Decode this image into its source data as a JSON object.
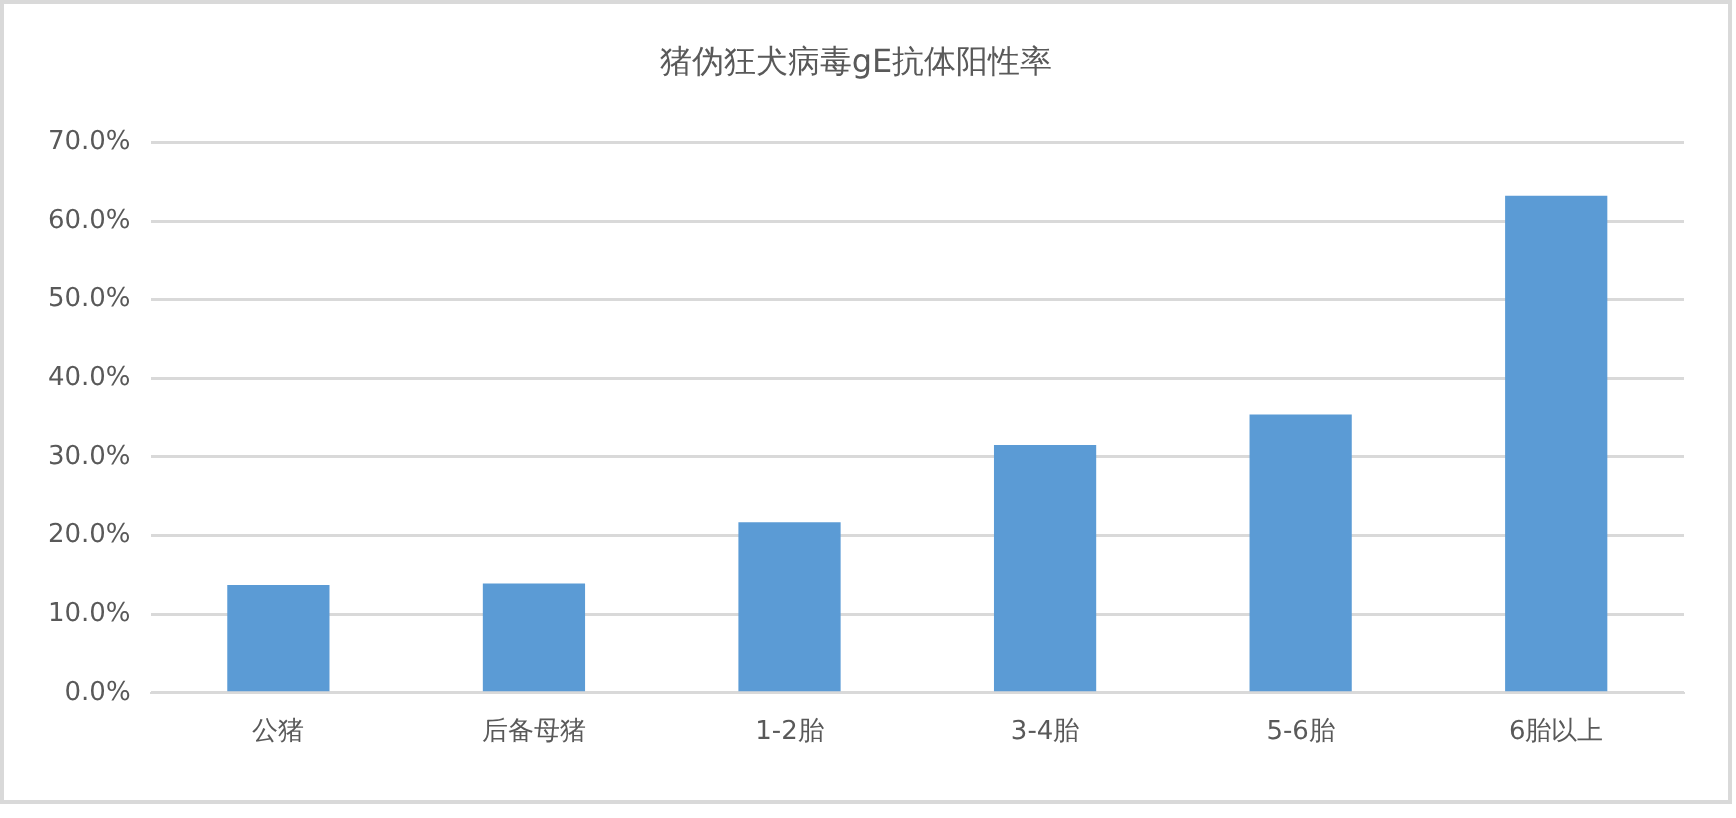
{
  "chart_data": {
    "type": "bar",
    "title": "猪伪狂犬病毒gE抗体阳性率",
    "categories": [
      "公猪",
      "后备母猪",
      "1-2胎",
      "3-4胎",
      "5-6胎",
      "6胎以上"
    ],
    "values": [
      13.7,
      13.9,
      21.7,
      31.5,
      35.4,
      63.2
    ],
    "color": "#5b9bd5",
    "ylim": [
      0,
      70
    ],
    "yticks": [
      {
        "value": 0,
        "label": "0.0%"
      },
      {
        "value": 10,
        "label": "10.0%"
      },
      {
        "value": 20,
        "label": "20.0%"
      },
      {
        "value": 30,
        "label": "30.0%"
      },
      {
        "value": 40,
        "label": "40.0%"
      },
      {
        "value": 50,
        "label": "50.0%"
      },
      {
        "value": 60,
        "label": "60.0%"
      },
      {
        "value": 70,
        "label": "70.0%"
      }
    ],
    "grid": "y",
    "legend": false
  }
}
